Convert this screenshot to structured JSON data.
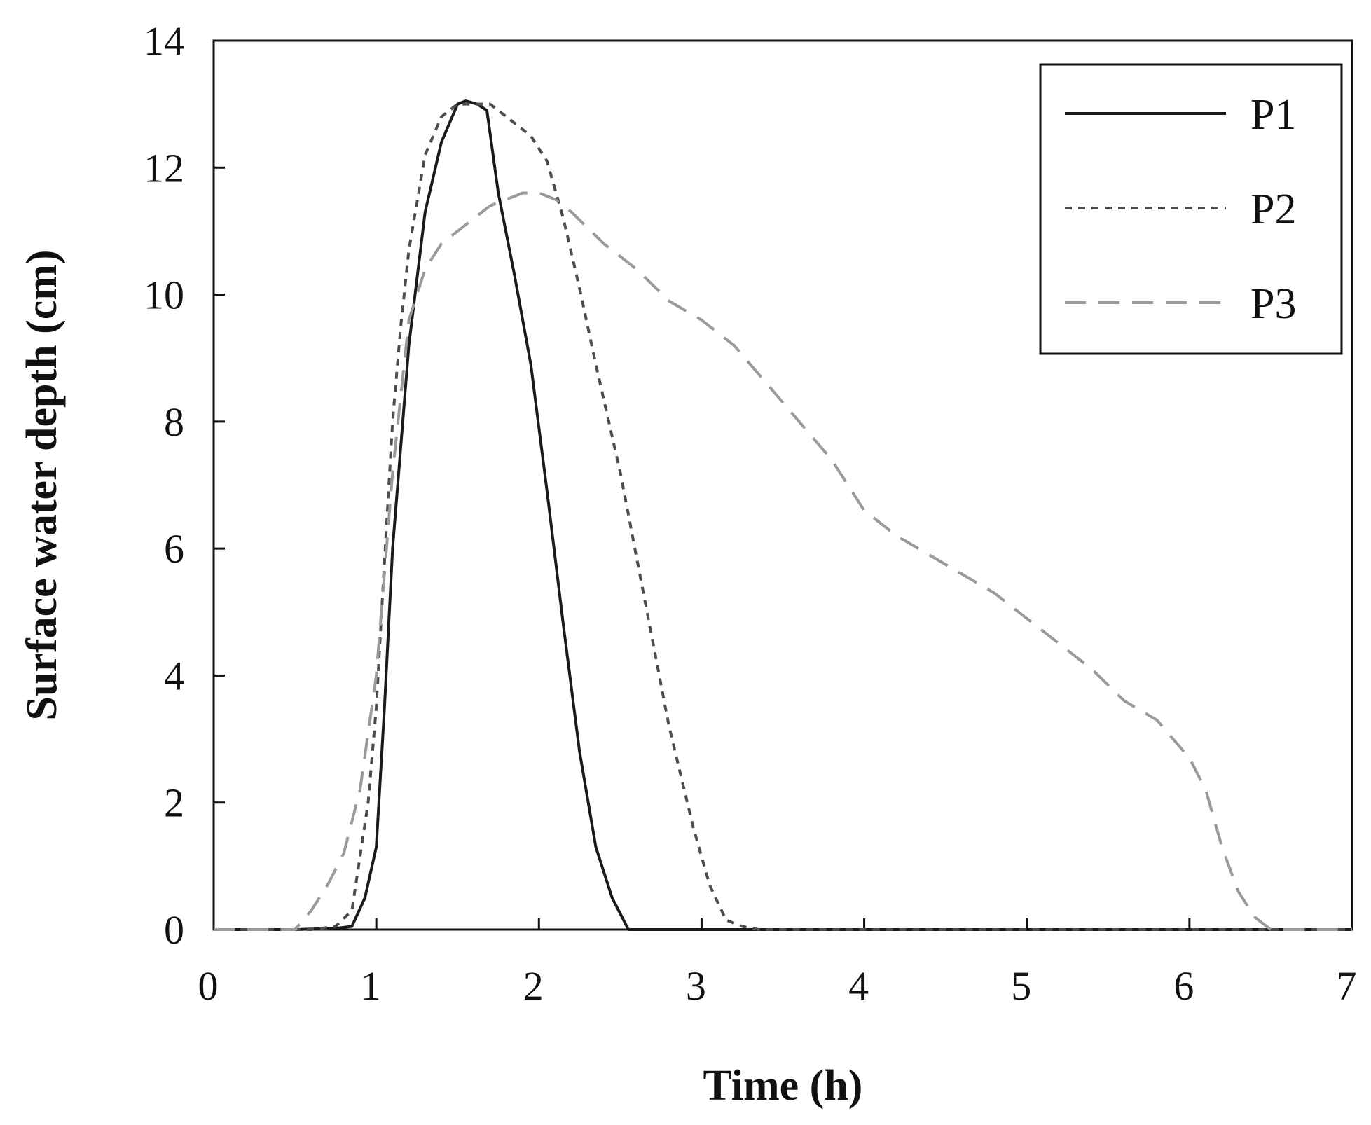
{
  "chart_data": {
    "type": "line",
    "title": "",
    "xlabel": "Time (h)",
    "ylabel": "Surface water depth (cm)",
    "xlim": [
      0,
      7
    ],
    "ylim": [
      0,
      14
    ],
    "xticks": [
      0,
      1,
      2,
      3,
      4,
      5,
      6,
      7
    ],
    "yticks": [
      0,
      2,
      4,
      6,
      8,
      10,
      12,
      14
    ],
    "grid": false,
    "legend_position": "top-right",
    "series": [
      {
        "name": "P1",
        "style": "solid",
        "color": "#1a1a1a",
        "x": [
          0,
          0.5,
          0.75,
          0.85,
          0.93,
          1.0,
          1.05,
          1.1,
          1.2,
          1.3,
          1.4,
          1.5,
          1.55,
          1.62,
          1.68,
          1.75,
          1.85,
          1.95,
          2.05,
          2.15,
          2.25,
          2.35,
          2.45,
          2.55,
          7.0
        ],
        "y": [
          0,
          0,
          0.02,
          0.05,
          0.5,
          1.3,
          3.5,
          6.0,
          9.2,
          11.3,
          12.4,
          13.0,
          13.05,
          13.0,
          12.9,
          11.6,
          10.3,
          8.9,
          6.9,
          4.8,
          2.8,
          1.3,
          0.5,
          0,
          0
        ]
      },
      {
        "name": "P2",
        "style": "dotted",
        "color": "#4d4d4d",
        "x": [
          0,
          0.6,
          0.75,
          0.85,
          0.95,
          1.0,
          1.05,
          1.1,
          1.15,
          1.2,
          1.3,
          1.4,
          1.5,
          1.6,
          1.7,
          1.8,
          1.95,
          2.05,
          2.15,
          2.25,
          2.35,
          2.5,
          2.65,
          2.8,
          2.95,
          3.05,
          3.15,
          3.25,
          3.35,
          7.0
        ],
        "y": [
          0,
          0,
          0.05,
          0.3,
          2.0,
          3.5,
          5.8,
          8.0,
          9.5,
          10.7,
          12.2,
          12.8,
          13.0,
          13.0,
          13.0,
          12.8,
          12.5,
          12.1,
          11.2,
          10.1,
          8.9,
          7.2,
          5.2,
          3.2,
          1.6,
          0.7,
          0.15,
          0.05,
          0,
          0
        ]
      },
      {
        "name": "P3",
        "style": "dashed",
        "color": "#9a9a9a",
        "x": [
          0,
          0.5,
          0.6,
          0.7,
          0.8,
          0.9,
          1.0,
          1.1,
          1.2,
          1.3,
          1.4,
          1.5,
          1.6,
          1.7,
          1.8,
          1.9,
          2.0,
          2.1,
          2.2,
          2.4,
          2.6,
          2.8,
          3.0,
          3.2,
          3.4,
          3.6,
          3.8,
          4.0,
          4.2,
          4.4,
          4.6,
          4.8,
          5.0,
          5.2,
          5.4,
          5.6,
          5.8,
          6.0,
          6.1,
          6.2,
          6.3,
          6.4,
          6.5,
          6.6,
          7.0
        ],
        "y": [
          0,
          0,
          0.3,
          0.7,
          1.2,
          2.2,
          4.0,
          7.2,
          9.6,
          10.4,
          10.8,
          11.0,
          11.2,
          11.4,
          11.5,
          11.6,
          11.6,
          11.5,
          11.3,
          10.8,
          10.4,
          9.9,
          9.6,
          9.2,
          8.6,
          8.0,
          7.4,
          6.6,
          6.2,
          5.9,
          5.6,
          5.3,
          4.9,
          4.5,
          4.1,
          3.6,
          3.3,
          2.7,
          2.2,
          1.3,
          0.6,
          0.2,
          0,
          0,
          0
        ]
      }
    ]
  }
}
